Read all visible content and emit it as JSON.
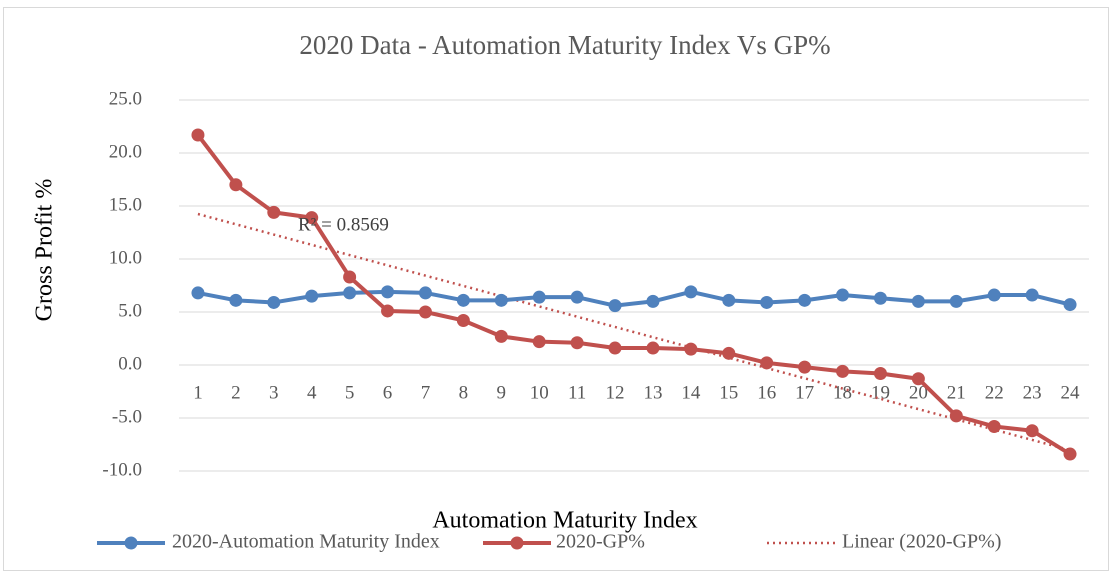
{
  "chart_data": {
    "type": "line",
    "title": "2020 Data - Automation Maturity Index Vs GP%",
    "x_label": "Automation Maturity Index",
    "y_label": "Gross Profit %",
    "categories": [
      "1",
      "2",
      "3",
      "4",
      "5",
      "6",
      "7",
      "8",
      "9",
      "10",
      "11",
      "12",
      "13",
      "14",
      "15",
      "16",
      "17",
      "18",
      "19",
      "20",
      "21",
      "22",
      "23",
      "24"
    ],
    "series": [
      {
        "name": "2020-Automation Maturity Index",
        "color": "#4f81bd",
        "values": [
          6.8,
          6.1,
          5.9,
          6.5,
          6.8,
          6.9,
          6.8,
          6.1,
          6.1,
          6.4,
          6.4,
          5.6,
          6.0,
          6.9,
          6.1,
          5.9,
          6.1,
          6.6,
          6.3,
          6.0,
          6.0,
          6.6,
          6.6,
          5.7
        ]
      },
      {
        "name": "2020-GP%",
        "color": "#c0504d",
        "values": [
          21.7,
          17.0,
          14.4,
          13.9,
          8.3,
          5.1,
          5.0,
          4.2,
          2.7,
          2.2,
          2.1,
          1.6,
          1.6,
          1.5,
          1.1,
          0.2,
          -0.2,
          -0.6,
          -0.8,
          -1.3,
          -4.8,
          -5.8,
          -6.2,
          -8.4
        ]
      }
    ],
    "trendline": {
      "name": "Linear (2020-GP%)",
      "color": "#c0504d",
      "label": "R² = 0.8569"
    },
    "ylim": [
      -10,
      25
    ],
    "yticks": [
      {
        "value": -10,
        "label": "-10.0"
      },
      {
        "value": -5,
        "label": "-5.0"
      },
      {
        "value": 0,
        "label": "0.0"
      },
      {
        "value": 5,
        "label": "5.0"
      },
      {
        "value": 10,
        "label": "10.0"
      },
      {
        "value": 15,
        "label": "15.0"
      },
      {
        "value": 20,
        "label": "20.0"
      },
      {
        "value": 25,
        "label": "25.0"
      }
    ],
    "grid": true,
    "legend": "bottom"
  }
}
